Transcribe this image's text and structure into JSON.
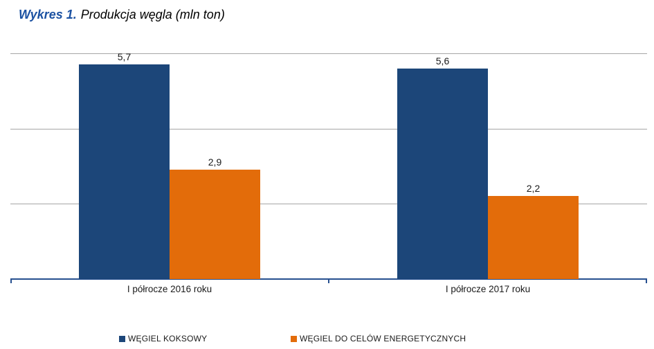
{
  "title": {
    "prefix": "Wykres 1.",
    "text": "Produkcja węgla (mln ton)"
  },
  "colors": {
    "series1": "#1C4679",
    "series2": "#E36C0A",
    "axis": "#264F8F",
    "gridline": "#A6A6A6",
    "title_prefix": "#1C52A2"
  },
  "chart_data": {
    "type": "bar",
    "title": "Wykres 1. Produkcja węgla (mln ton)",
    "unit": "mln ton",
    "categories": [
      "I półrocze 2016 roku",
      "I półrocze 2017 roku"
    ],
    "series": [
      {
        "name": "WĘGIEL KOKSOWY",
        "color": "#1C4679",
        "values": [
          5.7,
          5.6
        ],
        "labels": [
          "5,7",
          "5,6"
        ]
      },
      {
        "name": "WĘGIEL DO CELÓW ENERGETYCZNYCH",
        "color": "#E36C0A",
        "values": [
          2.9,
          2.2
        ],
        "labels": [
          "2,9",
          "2,2"
        ]
      }
    ],
    "ylim": [
      0,
      6
    ],
    "grid_step": 2,
    "grid": true,
    "y_axis_labels_visible": false,
    "legend_position": "bottom"
  }
}
